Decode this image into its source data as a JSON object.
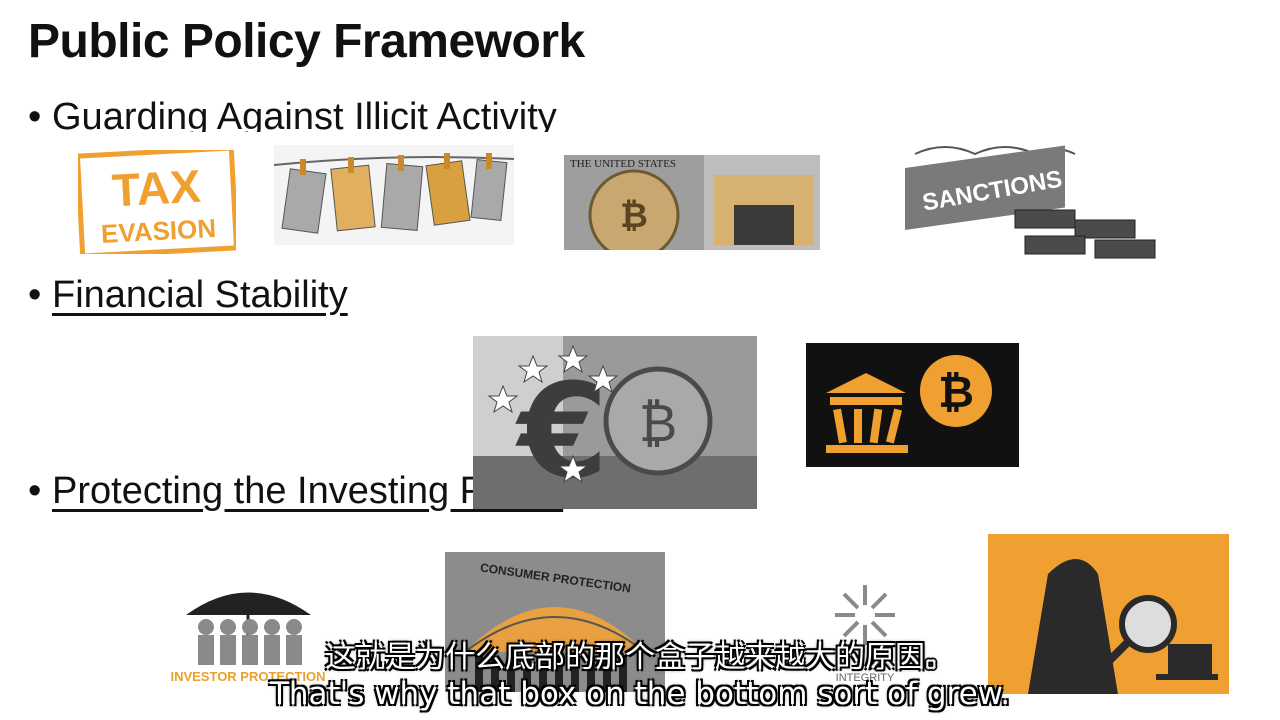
{
  "slide": {
    "title": "Public Policy Framework",
    "bullet_char": "•",
    "bullets": [
      "Guarding Against Illicit Activity",
      "Financial Stability",
      "Protecting the Investing Public"
    ]
  },
  "images": {
    "tax_evasion": {
      "line1": "TAX",
      "line2": "EVASION"
    },
    "united": {
      "caption": "THE UNITED STATES"
    },
    "sanctions": {
      "caption": "SANCTIONS"
    },
    "bitcoin_bank": {
      "symbol": "₿"
    },
    "euro_bitcoin": {
      "euro": "€",
      "coin": "₿"
    },
    "investor_protection": {
      "caption": "INVESTOR PROTECTION"
    },
    "consumer_protection": {
      "caption": "CONSUMER PROTECTION"
    },
    "integrity": {
      "caption": "INTEGRITY"
    }
  },
  "subtitles": {
    "chinese": "这就是为什么底部的那个盒子越来越大的原因。",
    "english": "That's why that box on the bottom sort of grew."
  },
  "colors": {
    "accent_orange": "#f0a030",
    "text": "#111111"
  }
}
